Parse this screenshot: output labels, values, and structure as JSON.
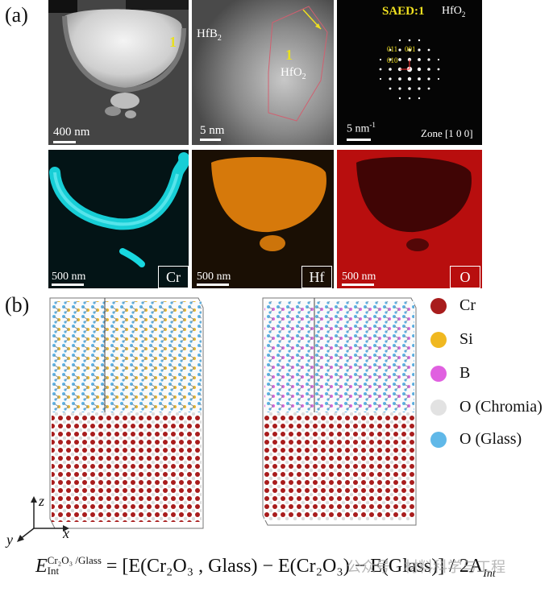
{
  "panel_a": {
    "label": "(a)",
    "tem_left": {
      "marker": "1",
      "scale": "400 nm"
    },
    "tem_mid": {
      "phase_top": "HfB",
      "phase_top_sub": "2",
      "marker": "1",
      "phase_bottom": "HfO",
      "phase_bottom_sub": "2",
      "scale": "5 nm"
    },
    "saed": {
      "title": "SAED:1",
      "phase": "HfO",
      "phase_sub": "2",
      "idx_011": "011",
      "idx_001": "001",
      "idx_010": "010",
      "scale": "5 nm",
      "scale_sup": "-1",
      "zone": "Zone [1 0 0]"
    },
    "maps": [
      {
        "element": "Cr",
        "scale": "500 nm",
        "color": "#18d8e0"
      },
      {
        "element": "Hf",
        "scale": "500 nm",
        "color": "#f08a10"
      },
      {
        "element": "O",
        "scale": "500 nm",
        "color": "#e01010"
      }
    ]
  },
  "panel_b": {
    "label": "(b)",
    "legend": [
      {
        "name": "Cr",
        "color": "#a81c1c"
      },
      {
        "name": "Si",
        "color": "#f0b820"
      },
      {
        "name": "B",
        "color": "#e060e0"
      },
      {
        "name": "O (Chromia)",
        "color": "#e2e2e2"
      },
      {
        "name": "O (Glass)",
        "color": "#60b8e8"
      }
    ],
    "axes": {
      "z": "z",
      "y": "y",
      "x": "x"
    }
  },
  "equation": {
    "E": "E",
    "sup": "Cr₂O₃ /Glass",
    "sub": "Int",
    "rhs": "= [E(Cr₂O₃ , Glass) − E(Cr₂O₃) − E(Glass)] / 2A",
    "rhs_sub": "Int"
  },
  "watermark": "公众号 · 材料科学与工程"
}
